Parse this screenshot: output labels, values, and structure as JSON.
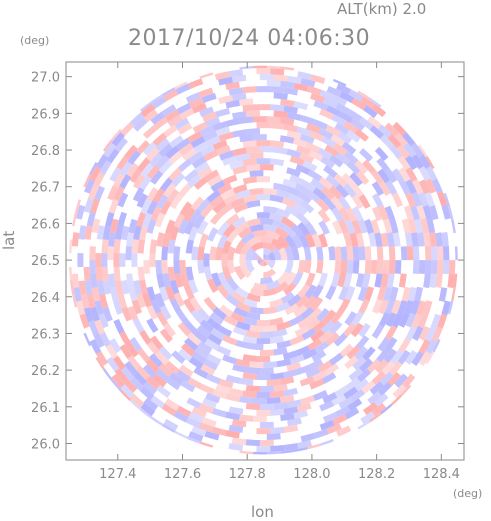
{
  "header": {
    "altitude_label": "ALT(km) 2.0",
    "timestamp": "2017/10/24 04:06:30"
  },
  "chart_data": {
    "type": "heatmap",
    "title": "2017/10/24 04:06:30",
    "xlabel": "lon",
    "ylabel": "lat",
    "x_unit": "(deg)",
    "y_unit": "(deg)",
    "xlim": [
      127.24,
      128.47
    ],
    "ylim": [
      25.955,
      27.04
    ],
    "x_ticks": [
      "127.4",
      "127.6",
      "127.8",
      "128.0",
      "128.2",
      "128.4"
    ],
    "y_ticks": [
      "26.0",
      "26.1",
      "26.2",
      "26.3",
      "26.4",
      "26.5",
      "26.6",
      "26.7",
      "26.8",
      "26.9",
      "27.0"
    ],
    "center": {
      "lon": 127.85,
      "lat": 26.5
    },
    "radius_deg_lat": 0.53,
    "colors": {
      "positive": "#ff9a9a",
      "negative": "#a0a0ff",
      "neutral": "#ffffff",
      "axis": "#8a8a8a"
    },
    "grid": false
  }
}
